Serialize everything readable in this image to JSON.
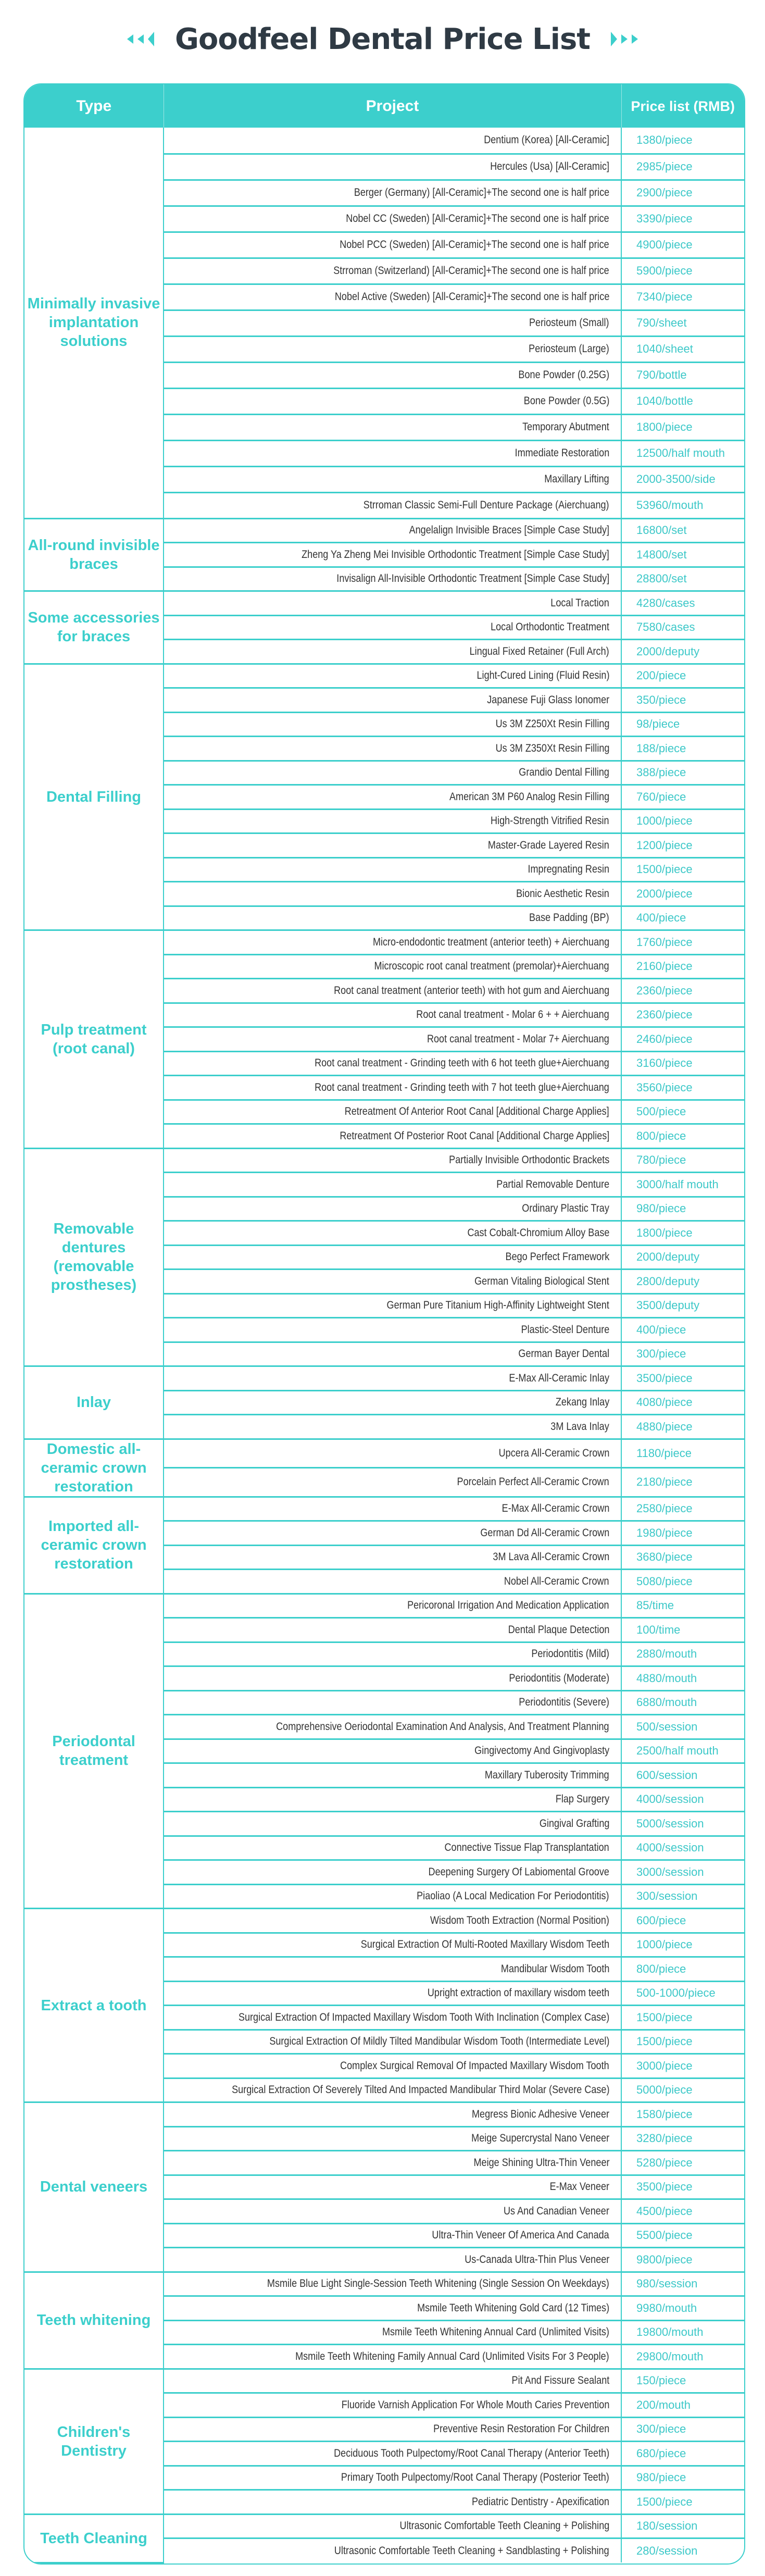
{
  "title": "Goodfeel Dental Price List",
  "accent_color": "#3ccfcc",
  "decorations": {
    "left": "triple-chevron-left-icon",
    "right": "triple-chevron-right-icon"
  },
  "header": {
    "type": "Type",
    "project": "Project",
    "price": "Price list (RMB)"
  },
  "groups": [
    {
      "type": "Minimally invasive implantation solutions",
      "items": [
        [
          "Dentium (Korea) [All-Ceramic]",
          "1380/piece"
        ],
        [
          "Hercules (Usa) [All-Ceramic]",
          "2985/piece"
        ],
        [
          "Berger (Germany) [All-Ceramic]+The second one is half price",
          "2900/piece"
        ],
        [
          "Nobel CC (Sweden) [All-Ceramic]+The second one is half price",
          "3390/piece"
        ],
        [
          "Nobel PCC (Sweden) [All-Ceramic]+The second one is half price",
          "4900/piece"
        ],
        [
          "Strroman (Switzerland) [All-Ceramic]+The second one is half price",
          "5900/piece"
        ],
        [
          "Nobel Active (Sweden) [All-Ceramic]+The second one is half price",
          "7340/piece"
        ],
        [
          "Periosteum (Small)",
          "790/sheet"
        ],
        [
          "Periosteum (Large)",
          "1040/sheet"
        ],
        [
          "Bone Powder (0.25G)",
          "790/bottle"
        ],
        [
          "Bone Powder (0.5G)",
          "1040/bottle"
        ],
        [
          "Temporary Abutment",
          "1800/piece"
        ],
        [
          "Immediate Restoration",
          "12500/half mouth"
        ],
        [
          "Maxillary Lifting",
          "2000-3500/side"
        ],
        [
          "Strroman Classic Semi-Full Denture Package (Aierchuang)",
          "53960/mouth"
        ]
      ]
    },
    {
      "type": "All-round invisible braces",
      "items": [
        [
          "Angelalign Invisible Braces [Simple Case Study]",
          "16800/set"
        ],
        [
          "Zheng Ya Zheng Mei Invisible Orthodontic Treatment [Simple Case Study]",
          "14800/set"
        ],
        [
          "Invisalign All-Invisible Orthodontic Treatment [Simple Case Study]",
          "28800/set"
        ]
      ]
    },
    {
      "type": "Some accessories for braces",
      "items": [
        [
          "Local Traction",
          "4280/cases"
        ],
        [
          "Local Orthodontic Treatment",
          "7580/cases"
        ],
        [
          "Lingual Fixed Retainer (Full Arch)",
          "2000/deputy"
        ]
      ]
    },
    {
      "type": "Dental Filling",
      "items": [
        [
          "Light-Cured Lining (Fluid Resin)",
          "200/piece"
        ],
        [
          "Japanese Fuji Glass Ionomer",
          "350/piece"
        ],
        [
          "Us 3M Z250Xt Resin Filling",
          "98/piece"
        ],
        [
          "Us 3M Z350Xt Resin Filling",
          "188/piece"
        ],
        [
          "Grandio Dental Filling",
          "388/piece"
        ],
        [
          "American 3M P60 Analog Resin Filling",
          "760/piece"
        ],
        [
          "High-Strength Vitrified Resin",
          "1000/piece"
        ],
        [
          "Master-Grade Layered Resin",
          "1200/piece"
        ],
        [
          "Impregnating Resin",
          "1500/piece"
        ],
        [
          "Bionic Aesthetic Resin",
          "2000/piece"
        ],
        [
          "Base Padding (BP)",
          "400/piece"
        ]
      ]
    },
    {
      "type": "Pulp treatment (root canal)",
      "items": [
        [
          "Micro-endodontic treatment (anterior teeth) + Aierchuang",
          "1760/piece"
        ],
        [
          "Microscopic root canal treatment (premolar)+Aierchuang",
          "2160/piece"
        ],
        [
          "Root canal treatment (anterior teeth) with hot gum and Aierchuang",
          "2360/piece"
        ],
        [
          "Root canal treatment - Molar 6 + + Aierchuang",
          "2360/piece"
        ],
        [
          "Root canal treatment - Molar 7+ Aierchuang",
          "2460/piece"
        ],
        [
          "Root canal treatment - Grinding teeth with 6 hot teeth glue+Aierchuang",
          "3160/piece"
        ],
        [
          "Root canal treatment - Grinding teeth with 7 hot teeth glue+Aierchuang",
          "3560/piece"
        ],
        [
          "Retreatment Of Anterior Root Canal [Additional Charge Applies]",
          "500/piece"
        ],
        [
          "Retreatment Of Posterior Root Canal [Additional Charge Applies]",
          "800/piece"
        ]
      ]
    },
    {
      "type": "Removable dentures (removable prostheses)",
      "items": [
        [
          "Partially Invisible Orthodontic Brackets",
          "780/piece"
        ],
        [
          "Partial Removable Denture",
          "3000/half mouth"
        ],
        [
          "Ordinary Plastic Tray",
          "980/piece"
        ],
        [
          "Cast Cobalt-Chromium Alloy Base",
          "1800/piece"
        ],
        [
          "Bego Perfect Framework",
          "2000/deputy"
        ],
        [
          "German Vitaling Biological Stent",
          "2800/deputy"
        ],
        [
          "German Pure Titanium High-Affinity Lightweight Stent",
          "3500/deputy"
        ],
        [
          "Plastic-Steel Denture",
          "400/piece"
        ],
        [
          "German Bayer Dental",
          "300/piece"
        ]
      ]
    },
    {
      "type": "Inlay",
      "items": [
        [
          "E-Max All-Ceramic Inlay",
          "3500/piece"
        ],
        [
          "Zekang Inlay",
          "4080/piece"
        ],
        [
          "3M Lava Inlay",
          "4880/piece"
        ]
      ]
    },
    {
      "type": "Domestic all-ceramic crown restoration",
      "items": [
        [
          "Upcera All-Ceramic Crown",
          "1180/piece"
        ],
        [
          "Porcelain Perfect All-Ceramic Crown",
          "2180/piece"
        ]
      ]
    },
    {
      "type": "Imported all-ceramic crown restoration",
      "items": [
        [
          "E-Max All-Ceramic Crown",
          "2580/piece"
        ],
        [
          "German Dd All-Ceramic Crown",
          "1980/piece"
        ],
        [
          "3M Lava All-Ceramic Crown",
          "3680/piece"
        ],
        [
          "Nobel All-Ceramic Crown",
          "5080/piece"
        ]
      ]
    },
    {
      "type": "Periodontal treatment",
      "items": [
        [
          "Pericoronal Irrigation And Medication Application",
          "85/time"
        ],
        [
          "Dental Plaque Detection",
          "100/time"
        ],
        [
          "Periodontitis (Mild)",
          "2880/mouth"
        ],
        [
          "Periodontitis (Moderate)",
          "4880/mouth"
        ],
        [
          "Periodontitis (Severe)",
          "6880/mouth"
        ],
        [
          "Comprehensive Oeriodontal Examination And Analysis, And Treatment Planning",
          "500/session"
        ],
        [
          "Gingivectomy And Gingivoplasty",
          "2500/half mouth"
        ],
        [
          "Maxillary Tuberosity Trimming",
          "600/session"
        ],
        [
          "Flap Surgery",
          "4000/session"
        ],
        [
          "Gingival Grafting",
          "5000/session"
        ],
        [
          "Connective Tissue Flap Transplantation",
          "4000/session"
        ],
        [
          "Deepening Surgery Of Labiomental Groove",
          "3000/session"
        ],
        [
          "Piaoliao (A Local Medication For Periodontitis)",
          "300/session"
        ]
      ]
    },
    {
      "type": "Extract a tooth",
      "items": [
        [
          "Wisdom Tooth Extraction (Normal Position)",
          "600/piece"
        ],
        [
          "Surgical Extraction Of Multi-Rooted Maxillary Wisdom Teeth",
          "1000/piece"
        ],
        [
          "Mandibular Wisdom Tooth",
          "800/piece"
        ],
        [
          "Upright extraction of maxillary wisdom teeth",
          "500-1000/piece"
        ],
        [
          "Surgical Extraction Of Impacted Maxillary Wisdom Tooth With Inclination (Complex Case)",
          "1500/piece"
        ],
        [
          "Surgical Extraction Of Mildly Tilted Mandibular Wisdom Tooth (Intermediate Level)",
          "1500/piece"
        ],
        [
          "Complex Surgical Removal Of Impacted Maxillary Wisdom Tooth",
          "3000/piece"
        ],
        [
          "Surgical Extraction Of Severely Tilted And Impacted Mandibular Third Molar (Severe Case)",
          "5000/piece"
        ]
      ]
    },
    {
      "type": "Dental veneers",
      "items": [
        [
          "Megress Bionic Adhesive Veneer",
          "1580/piece"
        ],
        [
          "Meige Supercrystal Nano Veneer",
          "3280/piece"
        ],
        [
          "Meige Shining Ultra-Thin Veneer",
          "5280/piece"
        ],
        [
          "E-Max Veneer",
          "3500/piece"
        ],
        [
          "Us And Canadian Veneer",
          "4500/piece"
        ],
        [
          "Ultra-Thin Veneer Of America And Canada",
          "5500/piece"
        ],
        [
          "Us-Canada Ultra-Thin Plus Veneer",
          "9800/piece"
        ]
      ]
    },
    {
      "type": "Teeth whitening",
      "items": [
        [
          "Msmile Blue Light Single-Session Teeth Whitening (Single Session On Weekdays)",
          "980/session"
        ],
        [
          "Msmile Teeth Whitening Gold Card (12 Times)",
          "9980/mouth"
        ],
        [
          "Msmile Teeth Whitening Annual Card (Unlimited Visits)",
          "19800/mouth"
        ],
        [
          "Msmile Teeth Whitening Family Annual Card (Unlimited Visits For 3 People)",
          "29800/mouth"
        ]
      ]
    },
    {
      "type": "Children's Dentistry",
      "items": [
        [
          "Pit And Fissure Sealant",
          "150/piece"
        ],
        [
          "Fluoride Varnish Application For Whole Mouth Caries Prevention",
          "200/mouth"
        ],
        [
          "Preventive Resin Restoration For Children",
          "300/piece"
        ],
        [
          "Deciduous Tooth Pulpectomy/Root Canal Therapy (Anterior Teeth)",
          "680/piece"
        ],
        [
          "Primary Tooth Pulpectomy/Root Canal Therapy (Posterior Teeth)",
          "980/piece"
        ],
        [
          "Pediatric Dentistry - Apexification",
          "1500/piece"
        ]
      ]
    },
    {
      "type": "Teeth Cleaning",
      "items": [
        [
          "Ultrasonic Comfortable Teeth Cleaning + Polishing",
          "180/session"
        ],
        [
          "Ultrasonic Comfortable Teeth Cleaning + Sandblasting + Polishing",
          "280/session"
        ]
      ]
    }
  ]
}
